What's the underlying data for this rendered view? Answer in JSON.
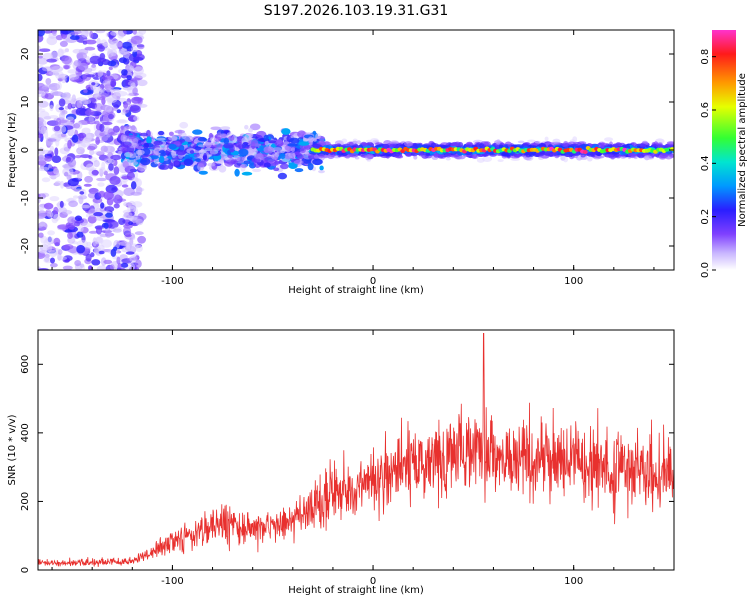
{
  "title": "S197.2026.103.19.31.G31",
  "colors": {
    "snr_line": "#e8302e",
    "background": "#ffffff",
    "spectrum_low": "#8a4dff",
    "spectrum_high": "#ff2a2a"
  },
  "chart_data": [
    {
      "type": "heatmap",
      "name": "spectrogram",
      "xlabel": "Height of straight line (km)",
      "ylabel": "Frequency (Hz)",
      "xlim": [
        -167,
        150
      ],
      "ylim": [
        -25,
        25
      ],
      "xticks": [
        -100,
        0,
        100
      ],
      "yticks": [
        -20,
        -10,
        0,
        10,
        20
      ],
      "ridge": {
        "frequency": 0,
        "start_km": -30,
        "end_km": 150,
        "peak_amplitude": 0.9
      },
      "colorbar": {
        "label": "Normalized spectral amplitude",
        "range": [
          0.0,
          0.9
        ],
        "ticks": [
          "0.0",
          "0.2",
          "0.4",
          "0.6",
          "0.8"
        ],
        "tick_values": [
          0.0,
          0.2,
          0.4,
          0.6,
          0.8
        ]
      }
    },
    {
      "type": "line",
      "name": "snr",
      "xlabel": "Height of straight line (km)",
      "ylabel": "SNR (10 * v/v)",
      "xlim": [
        -167,
        150
      ],
      "ylim": [
        0,
        700
      ],
      "xticks": [
        -100,
        0,
        100
      ],
      "yticks": [
        0,
        200,
        400,
        600
      ],
      "envelope": {
        "x": [
          -167,
          -120,
          -110,
          -90,
          -80,
          -60,
          -40,
          -30,
          -20,
          0,
          20,
          30,
          40,
          50,
          60,
          80,
          100,
          120,
          150
        ],
        "mean": [
          20,
          25,
          55,
          110,
          130,
          120,
          140,
          180,
          230,
          260,
          300,
          330,
          350,
          340,
          330,
          320,
          310,
          300,
          290
        ],
        "spread": [
          12,
          15,
          30,
          60,
          80,
          60,
          70,
          90,
          100,
          120,
          140,
          150,
          160,
          170,
          170,
          160,
          150,
          140,
          130
        ]
      },
      "peak": {
        "x": 55,
        "y": 690
      }
    }
  ]
}
